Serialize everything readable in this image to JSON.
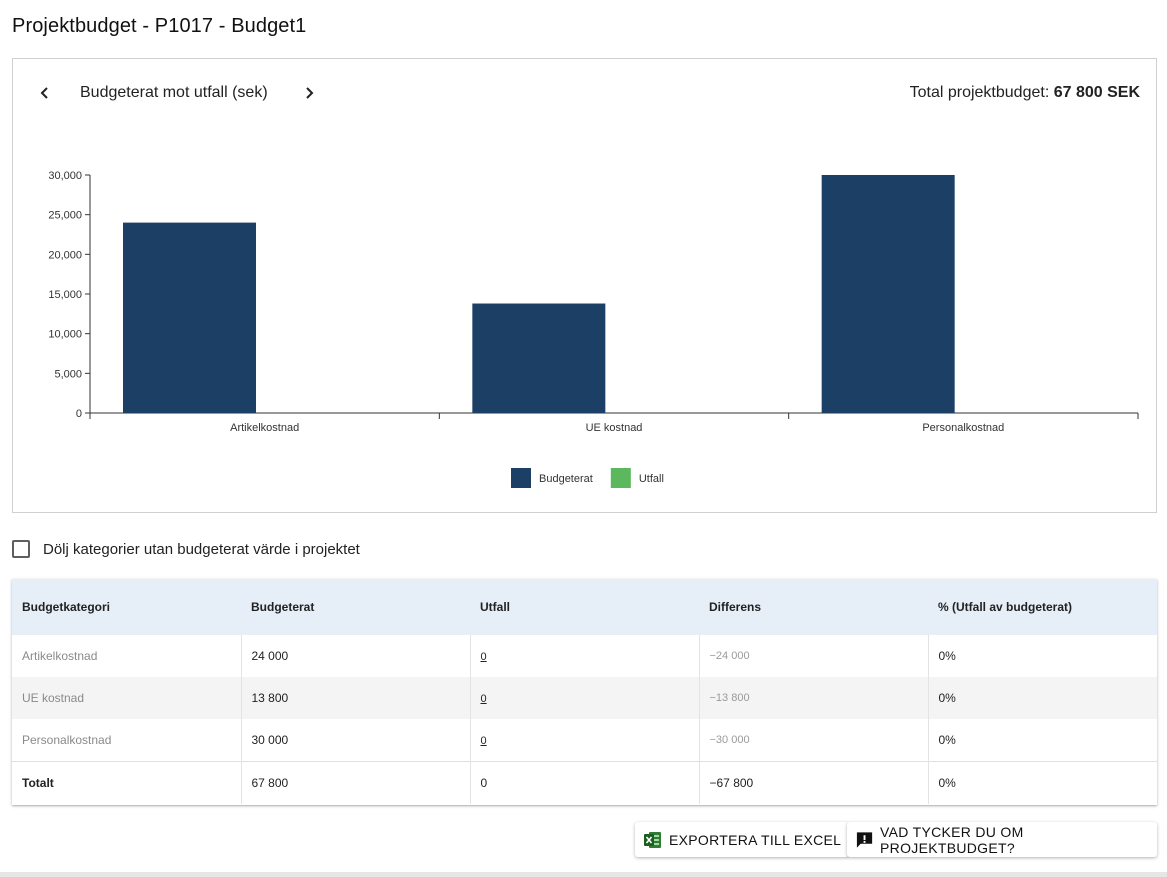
{
  "page": {
    "title": "Projektbudget - P1017 - Budget1"
  },
  "chart_header": {
    "title": "Budgeterat mot utfall (sek)",
    "total_label": "Total projektbudget:",
    "total_value": "67 800 SEK"
  },
  "chart_data": {
    "type": "bar",
    "categories": [
      "Artikelkostnad",
      "UE kostnad",
      "Personalkostnad"
    ],
    "series": [
      {
        "name": "Budgeterat",
        "color": "#1c3f66",
        "values": [
          24000,
          13800,
          30000
        ]
      },
      {
        "name": "Utfall",
        "color": "#5cb85c",
        "values": [
          0,
          0,
          0
        ]
      }
    ],
    "ylim": [
      0,
      30000
    ],
    "yticks": [
      0,
      5000,
      10000,
      15000,
      20000,
      25000,
      30000
    ],
    "ytick_labels": [
      "0",
      "5,000",
      "10,000",
      "15,000",
      "20,000",
      "25,000",
      "30,000"
    ],
    "legend": "bottom-center",
    "grid": false
  },
  "filter": {
    "hide_empty_label": "Dölj kategorier utan budgeterat värde i projektet",
    "checked": false
  },
  "table": {
    "headers": [
      "Budgetkategori",
      "Budgeterat",
      "Utfall",
      "Differens",
      "% (Utfall av budgeterat)"
    ],
    "rows": [
      {
        "category": "Artikelkostnad",
        "budget": "24 000",
        "outcome": "0",
        "diff": "−24 000",
        "pct": "0%"
      },
      {
        "category": "UE kostnad",
        "budget": "13 800",
        "outcome": "0",
        "diff": "−13 800",
        "pct": "0%"
      },
      {
        "category": "Personalkostnad",
        "budget": "30 000",
        "outcome": "0",
        "diff": "−30 000",
        "pct": "0%"
      }
    ],
    "total": {
      "label": "Totalt",
      "budget": "67 800",
      "outcome": "0",
      "diff": "−67 800",
      "pct": "0%"
    }
  },
  "actions": {
    "export_label": "EXPORTERA TILL EXCEL",
    "feedback_label": "VAD TYCKER DU OM PROJEKTBUDGET?"
  },
  "icons": {
    "prev": "chevron-left-icon",
    "next": "chevron-right-icon",
    "excel": "excel-icon",
    "feedback": "feedback-icon"
  }
}
